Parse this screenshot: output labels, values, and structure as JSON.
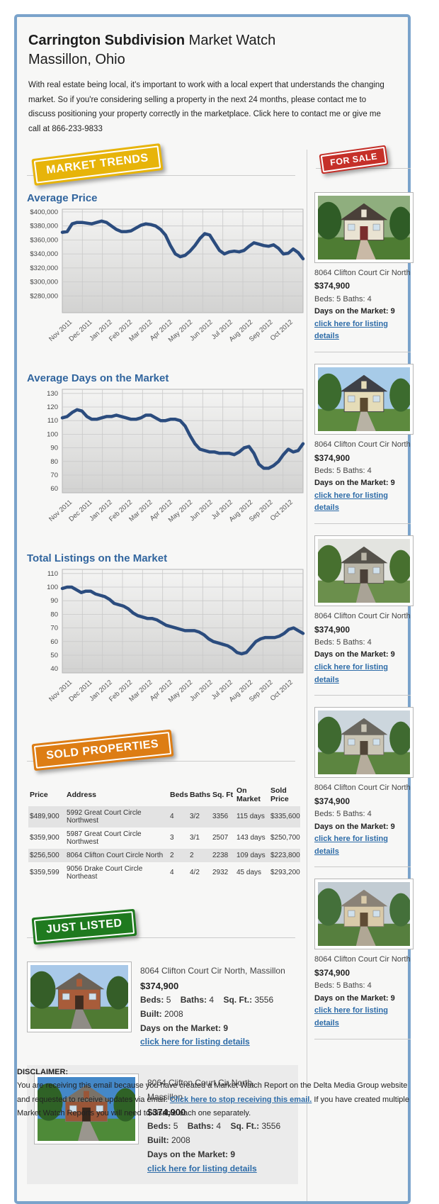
{
  "header": {
    "title_bold": "Carrington Subdivision",
    "title_rest": " Market Watch",
    "city": "Massillon, Ohio",
    "intro": "With real estate being local, it's important to work with a local expert that understands the changing market. So if you're considering selling a property in the next 24 months, please contact me to discuss positioning your property correctly in the marketplace. Click here to contact me or give me call at 866-233-9833"
  },
  "badges": {
    "market_trends": "MARKET TRENDS",
    "for_sale": "FOR SALE",
    "sold_properties": "SOLD PROPERTIES",
    "just_listed": "JUST LISTED"
  },
  "colors": {
    "border_blue": "#7aa3cb",
    "heading_blue": "#31659e",
    "line_navy": "#2b4c7e",
    "link_blue": "#2e6ca8",
    "badge_yellow": "#e7b40a",
    "badge_red": "#c53029",
    "badge_orange": "#dd7d14",
    "badge_green": "#1f7a1f"
  },
  "chart_data": [
    {
      "type": "line",
      "title": "Average Price",
      "x_labels": [
        "Nov 2011",
        "Dec 2011",
        "Jan 2012",
        "Feb 2012",
        "Mar 2012",
        "Apr 2012",
        "May 2012",
        "Jun 2012",
        "Jul 2012",
        "Aug 2012",
        "Sep 2012",
        "Oct 2012"
      ],
      "unit": "thousand_dollars",
      "values": [
        371,
        372,
        383,
        385,
        385,
        384,
        383,
        385,
        387,
        385,
        380,
        375,
        372,
        372,
        373,
        377,
        381,
        383,
        382,
        380,
        375,
        367,
        352,
        340,
        336,
        338,
        344,
        352,
        362,
        369,
        367,
        356,
        345,
        340,
        343,
        344,
        343,
        345,
        351,
        356,
        354,
        352,
        351,
        353,
        348,
        340,
        341,
        347,
        342,
        333
      ],
      "ylim": [
        256,
        404
      ],
      "ytick_values": [
        400,
        380,
        360,
        340,
        320,
        300,
        280
      ],
      "ytick_labels": [
        "$400,000",
        "$380,000",
        "$360,000",
        "$340,000",
        "$320,000",
        "$300,000",
        "$280,000"
      ],
      "grid": true,
      "legend": "none"
    },
    {
      "type": "line",
      "title": "Average Days on the Market",
      "x_labels": [
        "Nov 2011",
        "Dec 2011",
        "Jan 2012",
        "Feb 2012",
        "Mar 2012",
        "Apr 2012",
        "May 2012",
        "Jun 2012",
        "Jul 2012",
        "Aug 2012",
        "Sep 2012",
        "Oct 2012"
      ],
      "unit": "days",
      "values": [
        112,
        113,
        116,
        118,
        117,
        113,
        111,
        111,
        112,
        113,
        113,
        114,
        113,
        112,
        111,
        111,
        112,
        114,
        114,
        112,
        110,
        110,
        111,
        111,
        110,
        106,
        99,
        93,
        89,
        88,
        87,
        87,
        86,
        86,
        86,
        85,
        87,
        90,
        91,
        86,
        78,
        75,
        75,
        77,
        80,
        85,
        89,
        87,
        88,
        93
      ],
      "ylim": [
        57,
        133
      ],
      "ytick_values": [
        130,
        120,
        110,
        100,
        90,
        80,
        70,
        60
      ],
      "ytick_labels": [
        "130",
        "120",
        "110",
        "100",
        "90",
        "80",
        "70",
        "60"
      ],
      "grid": true,
      "legend": "none"
    },
    {
      "type": "line",
      "title": "Total Listings on the Market",
      "x_labels": [
        "Nov 2011",
        "Dec 2011",
        "Jan 2012",
        "Feb 2012",
        "Mar 2012",
        "Apr 2012",
        "May 2012",
        "Jun 2012",
        "Jul 2012",
        "Aug 2012",
        "Sep 2012",
        "Oct 2012"
      ],
      "unit": "listings",
      "values": [
        99,
        100,
        100,
        98,
        96,
        97,
        97,
        95,
        94,
        93,
        91,
        88,
        87,
        86,
        84,
        81,
        79,
        78,
        77,
        77,
        76,
        74,
        72,
        71,
        70,
        69,
        68,
        68,
        68,
        67,
        65,
        62,
        60,
        59,
        58,
        57,
        55,
        52,
        51,
        52,
        56,
        60,
        62,
        63,
        63,
        63,
        64,
        66,
        69,
        70,
        68,
        66
      ],
      "ylim": [
        37,
        113
      ],
      "ytick_values": [
        110,
        100,
        90,
        80,
        70,
        60,
        50,
        40
      ],
      "ytick_labels": [
        "110",
        "100",
        "90",
        "80",
        "70",
        "60",
        "50",
        "40"
      ],
      "grid": true,
      "legend": "none"
    }
  ],
  "sidebar": {
    "listings": [
      {
        "address": "8064 Clifton Court Cir North",
        "price": "$374,900",
        "beds_baths": "Beds: 5 Baths: 4",
        "days": "Days on the Market: 9",
        "link": "click here for listing details",
        "photo": {
          "sky": "#8fae7e",
          "grass": "#4e7c33",
          "tree": "#2f5c26",
          "roof": "#4a4039",
          "wall": "#e9e3d2",
          "door": "#7a2e2e",
          "path": "#c9b9a6"
        }
      },
      {
        "address": "8064 Clifton Court Cir North",
        "price": "$374,900",
        "beds_baths": "Beds: 5 Baths: 4",
        "days": "Days on the Market: 9",
        "link": "click here for listing details",
        "photo": {
          "sky": "#a7cbe8",
          "grass": "#5d8a3e",
          "tree": "#3c6b2e",
          "roof": "#3f4046",
          "wall": "#e5dcb8",
          "door": "#5b4a2f",
          "path": "#b8b2a4"
        }
      },
      {
        "address": "8064 Clifton Court Cir North",
        "price": "$374,900",
        "beds_baths": "Beds: 5 Baths: 4",
        "days": "Days on the Market: 9",
        "link": "click here for listing details",
        "photo": {
          "sky": "#e3e4e0",
          "grass": "#6b8f4c",
          "tree": "#47702f",
          "roof": "#55524b",
          "wall": "#b9b5a7",
          "door": "#4a4038",
          "path": "#a9a396"
        }
      },
      {
        "address": "8064 Clifton Court Cir North",
        "price": "$374,900",
        "beds_baths": "Beds: 5 Baths: 4",
        "days": "Days on the Market: 9",
        "link": "click here for listing details",
        "photo": {
          "sky": "#ccd6dd",
          "grass": "#5c8540",
          "tree": "#3f6a30",
          "roof": "#6a675f",
          "wall": "#cac5b5",
          "door": "#504538",
          "path": "#b5ac9c"
        }
      },
      {
        "address": "8064 Clifton Court Cir North",
        "price": "$374,900",
        "beds_baths": "Beds: 5 Baths: 4",
        "days": "Days on the Market: 9",
        "link": "click here for listing details",
        "photo": {
          "sky": "#c2ccd3",
          "grass": "#567f3e",
          "tree": "#44703a",
          "roof": "#8a8277",
          "wall": "#d9caa9",
          "door": "#5f4c35",
          "path": "#b0a795"
        }
      }
    ]
  },
  "sold": {
    "headers": [
      "Price",
      "Address",
      "Beds",
      "Baths",
      "Sq. Ft",
      "On Market",
      "Sold Price"
    ],
    "rows": [
      {
        "price": "$489,900",
        "address": "5992 Great Court Circle Northwest",
        "beds": "4",
        "baths": "3/2",
        "sqft": "3356",
        "on_market": "115 days",
        "sold_price": "$335,600"
      },
      {
        "price": "$359,900",
        "address": "5987 Great Court Circle Northwest",
        "beds": "3",
        "baths": "3/1",
        "sqft": "2507",
        "on_market": "143 days",
        "sold_price": "$250,700"
      },
      {
        "price": "$256,500",
        "address": "8064 Clifton Court Circle North",
        "beds": "2",
        "baths": "2",
        "sqft": "2238",
        "on_market": "109 days",
        "sold_price": "$223,800"
      },
      {
        "price": "$359,599",
        "address": "9056 Drake Court Circle Northeast",
        "beds": "4",
        "baths": "4/2",
        "sqft": "2932",
        "on_market": "45 days",
        "sold_price": "$293,200"
      }
    ]
  },
  "just_listed": {
    "items": [
      {
        "address": "8064 Clifton Court Cir North, Massillon",
        "price": "$374,900",
        "beds_label": "Beds:",
        "beds_value": "5",
        "baths_label": "Baths:",
        "baths_value": "4",
        "sqft_label": "Sq. Ft.:",
        "sqft_value": "3556",
        "built_label": "Built:",
        "built_value": "2008",
        "days_label": "Days on the Market:",
        "days_value": "9",
        "link": "click here for listing details",
        "photo": {
          "sky": "#a9c9e9",
          "grass": "#4f7a33",
          "tree": "#355e28",
          "roof": "#6b6257",
          "wall": "#a85c3a",
          "door": "#3f2c20",
          "path": "#8f8c86"
        }
      },
      {
        "address": "8064 Clifton Court Cir North, Massillon",
        "price": "$374,900",
        "beds_label": "Beds:",
        "beds_value": "5",
        "baths_label": "Baths:",
        "baths_value": "4",
        "sqft_label": "Sq. Ft.:",
        "sqft_value": "3556",
        "built_label": "Built:",
        "built_value": "2008",
        "days_label": "Days on the Market:",
        "days_value": "9",
        "link": "click here for listing details",
        "photo": {
          "sky": "#4488c8",
          "grass": "#4e8a38",
          "tree": "#2f6226",
          "roof": "#7a7268",
          "wall": "#9a5638",
          "door": "#36261c",
          "path": "#9a968e"
        }
      }
    ]
  },
  "disclaimer": {
    "label": "DISCLAIMER:",
    "text_before": "You are receiving this email because you have created a Market Watch Report on the Delta Media Group website and requested to receive updates via email. ",
    "link": "Click here to stop receiving this email.",
    "text_after": " If you have created multiple Market Watch Reports you will need to disable each one separately."
  }
}
